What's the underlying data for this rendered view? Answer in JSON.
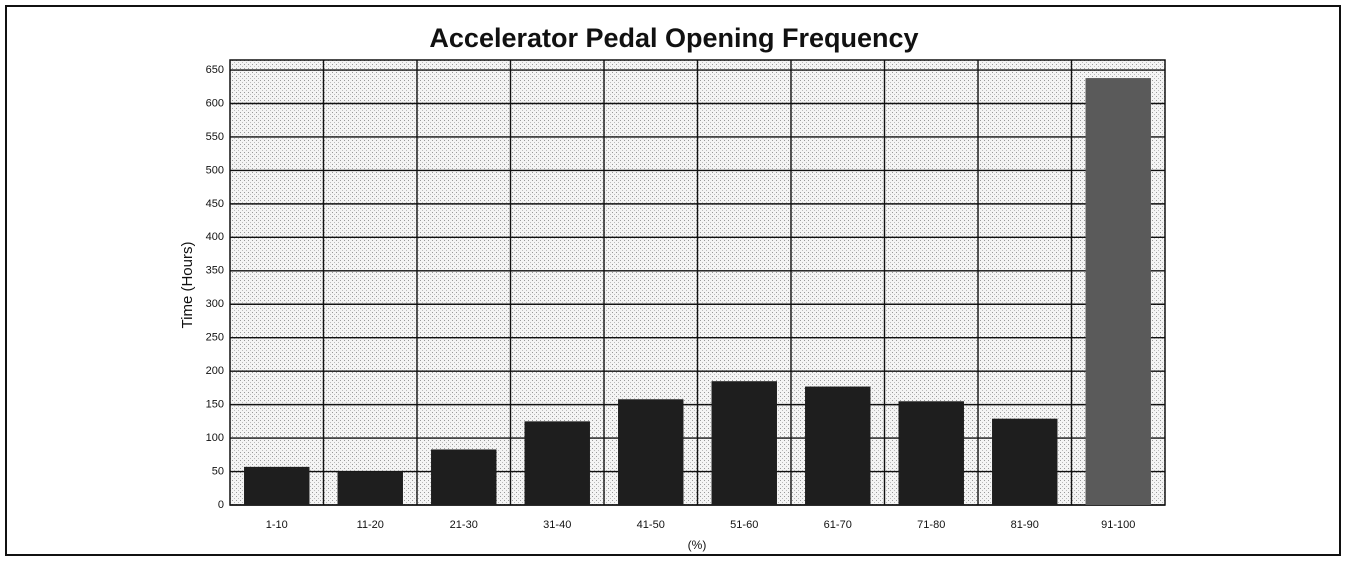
{
  "chart_data": {
    "type": "bar",
    "title": "Accelerator Pedal Opening Frequency",
    "x_label": "(%)",
    "y_label": "Time (Hours)",
    "categories": [
      "1-10",
      "11-20",
      "21-30",
      "31-40",
      "41-50",
      "51-60",
      "61-70",
      "71-80",
      "81-90",
      "91-100"
    ],
    "values": [
      57,
      50,
      83,
      125,
      158,
      185,
      177,
      155,
      129,
      638
    ],
    "colors": [
      "#1e1e1e",
      "#1e1e1e",
      "#1e1e1e",
      "#1e1e1e",
      "#1e1e1e",
      "#1e1e1e",
      "#1e1e1e",
      "#1e1e1e",
      "#1e1e1e",
      "#5a5a5a"
    ],
    "ylim": [
      0,
      665
    ],
    "yticks": [
      0,
      50,
      100,
      150,
      200,
      250,
      300,
      350,
      400,
      450,
      500,
      550,
      600,
      650
    ],
    "grid": true
  }
}
